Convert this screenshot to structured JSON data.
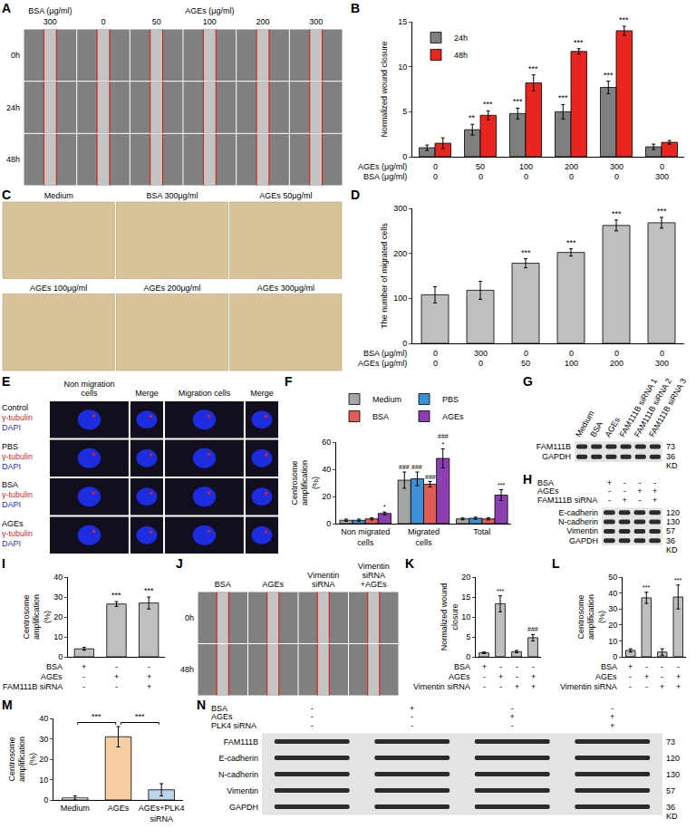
{
  "chart_data": [
    {
      "panel": "B",
      "type": "bar",
      "ylabel": "Normalized wound closure",
      "x_rows": [
        {
          "label": "AGEs (μg/ml)",
          "values": [
            0,
            50,
            100,
            200,
            300,
            0
          ]
        },
        {
          "label": "BSA (μg/ml)",
          "values": [
            0,
            0,
            0,
            0,
            0,
            300
          ]
        }
      ],
      "series": [
        {
          "name": "24h",
          "color": "#7f7f7f",
          "values": [
            1.0,
            3.0,
            4.8,
            5.0,
            7.7,
            1.1
          ],
          "errors": [
            0.3,
            0.6,
            0.6,
            0.8,
            0.7,
            0.3
          ],
          "significance": [
            null,
            "**",
            "***",
            "***",
            "***",
            null
          ]
        },
        {
          "name": "48h",
          "color": "#e8251f",
          "values": [
            1.5,
            4.6,
            8.2,
            11.7,
            14.0,
            1.6
          ],
          "errors": [
            0.6,
            0.5,
            0.9,
            0.3,
            0.5,
            0.2
          ],
          "significance": [
            null,
            "***",
            "***",
            "***",
            "***",
            null
          ]
        }
      ],
      "ylim": [
        0,
        15
      ],
      "yticks": [
        0,
        5,
        10,
        15
      ],
      "legend": "top-left",
      "grid": false
    },
    {
      "panel": "D",
      "type": "bar",
      "ylabel": "The number of migrated cells",
      "x_rows": [
        {
          "label": "BSA (μg/ml)",
          "values": [
            0,
            300,
            0,
            0,
            0,
            0
          ]
        },
        {
          "label": "AGEs (μg/ml)",
          "values": [
            0,
            0,
            50,
            100,
            200,
            300
          ]
        }
      ],
      "values": [
        108,
        118,
        178,
        202,
        262,
        268
      ],
      "errors": [
        18,
        20,
        10,
        8,
        12,
        12
      ],
      "significance": [
        null,
        null,
        "***",
        "***",
        "***",
        "***"
      ],
      "color": "#bfbfbf",
      "ylim": [
        0,
        300
      ],
      "yticks": [
        0,
        100,
        200,
        300
      ],
      "grid": false
    },
    {
      "panel": "F",
      "type": "bar",
      "ylabel": "Centrosome amplification (%)",
      "categories": [
        "Non migrated cells",
        "Migrated cells",
        "Total"
      ],
      "series": [
        {
          "name": "Medium",
          "color": "#a6a6a6",
          "values": [
            2.5,
            32,
            3.5
          ],
          "errors": [
            0.8,
            6,
            0.7
          ],
          "significance": [
            null,
            "###",
            null
          ]
        },
        {
          "name": "PBS",
          "color": "#3d8fd6",
          "values": [
            2.5,
            33,
            4
          ],
          "errors": [
            0.8,
            5,
            0.8
          ],
          "significance": [
            null,
            "###",
            null
          ]
        },
        {
          "name": "BSA",
          "color": "#e05c55",
          "values": [
            3.5,
            29,
            3.5
          ],
          "errors": [
            0.8,
            2,
            0.8
          ],
          "significance": [
            null,
            "###",
            null
          ]
        },
        {
          "name": "AGEs",
          "color": "#8b3fb0",
          "values": [
            7.5,
            48,
            21
          ],
          "errors": [
            1,
            7,
            4
          ],
          "significance": [
            "*",
            [
              "###",
              "*"
            ],
            "***"
          ]
        }
      ],
      "ylim": [
        0,
        60
      ],
      "yticks": [
        0,
        20,
        40,
        60
      ],
      "legend": "top",
      "grid": false
    },
    {
      "panel": "I",
      "type": "bar",
      "ylabel": "Centrosome amplification (%)",
      "x_rows": [
        {
          "label": "BSA",
          "values": [
            "+",
            "-",
            "-"
          ]
        },
        {
          "label": "AGEs",
          "values": [
            "-",
            "+",
            "+"
          ]
        },
        {
          "label": "FAM111B siRNA",
          "values": [
            "-",
            "-",
            "+"
          ]
        }
      ],
      "values": [
        4,
        26.5,
        27
      ],
      "errors": [
        0.7,
        1.2,
        3
      ],
      "significance": [
        null,
        "***",
        "***"
      ],
      "color": "#bfbfbf",
      "ylim": [
        0,
        40
      ],
      "yticks": [
        0,
        10,
        20,
        30,
        40
      ],
      "grid": false
    },
    {
      "panel": "K",
      "type": "bar",
      "ylabel": "Normalized wound closure",
      "x_rows": [
        {
          "label": "BSA",
          "values": [
            "+",
            "-",
            "-",
            "-"
          ]
        },
        {
          "label": "AGEs",
          "values": [
            "-",
            "+",
            "-",
            "+"
          ]
        },
        {
          "label": "Vimentin siRNA",
          "values": [
            "-",
            "-",
            "+",
            "+"
          ]
        }
      ],
      "values": [
        1,
        13.3,
        1.3,
        4.8
      ],
      "errors": [
        0.2,
        2,
        0.3,
        0.8
      ],
      "significance": [
        null,
        "***",
        null,
        "###"
      ],
      "color": "#bfbfbf",
      "ylim": [
        0,
        20
      ],
      "yticks": [
        0,
        5,
        10,
        15,
        20
      ],
      "grid": false
    },
    {
      "panel": "L",
      "type": "bar",
      "ylabel": "Centrosome amplification (%)",
      "x_rows": [
        {
          "label": "BSA",
          "values": [
            "+",
            "-",
            "-",
            "-"
          ]
        },
        {
          "label": "AGEs",
          "values": [
            "-",
            "+",
            "-",
            "+"
          ]
        },
        {
          "label": "Vimentin siRNA",
          "values": [
            "-",
            "-",
            "+",
            "+"
          ]
        }
      ],
      "values": [
        4,
        37,
        3,
        37.5
      ],
      "errors": [
        1,
        3.5,
        2,
        7.5
      ],
      "significance": [
        null,
        "***",
        null,
        "***"
      ],
      "color": "#bfbfbf",
      "ylim": [
        0,
        50
      ],
      "yticks": [
        0,
        10,
        20,
        30,
        40,
        50
      ],
      "grid": false
    },
    {
      "panel": "M",
      "type": "bar",
      "ylabel": "Centrosome amplification (%)",
      "categories": [
        "Medium",
        "AGEs",
        "AGEs+PLK4 siRNA"
      ],
      "values": [
        1,
        31,
        5
      ],
      "errors": [
        1,
        5,
        3
      ],
      "colors": [
        "#ffffff",
        "#f8cfa0",
        "#bcd4ec"
      ],
      "comparisons": [
        {
          "from": 0,
          "to": 1,
          "text": "***"
        },
        {
          "from": 1,
          "to": 2,
          "text": "***"
        }
      ],
      "ylim": [
        0,
        40
      ],
      "yticks": [
        0,
        10,
        20,
        30,
        40
      ],
      "grid": false
    }
  ],
  "image_panels": [
    {
      "panel": "A",
      "type": "scratch_assay",
      "col_groups": [
        {
          "label": "BSA (μg/ml)",
          "span": 1
        },
        {
          "label": "AGEs (μg/ml)",
          "span": 5
        }
      ],
      "columns": [
        300,
        0,
        50,
        100,
        200,
        300
      ],
      "rows": [
        "0h",
        "24h",
        "48h"
      ]
    },
    {
      "panel": "C",
      "type": "transwell",
      "labels": [
        "Medium",
        "BSA 300μg/ml",
        "AGEs 50μg/ml",
        "AGEs 100μg/ml",
        "AGEs 200μg/ml",
        "AGEs 300μg/ml"
      ]
    },
    {
      "panel": "E",
      "type": "immunofluorescence",
      "columns": [
        "Non migration cells",
        "Merge",
        "Migration cells",
        "Merge"
      ],
      "rows": [
        "Control",
        "PBS",
        "BSA",
        "AGEs"
      ],
      "stains": [
        {
          "name": "γ-tubulin",
          "color": "#e0201c"
        },
        {
          "name": "DAPI",
          "color": "#1c2ce0"
        }
      ]
    },
    {
      "panel": "G",
      "type": "western_blot",
      "lanes": [
        "Medium",
        "BSA",
        "AGEs",
        "FAM111B siRNA 1",
        "FAM111B siRNA 2",
        "FAM111B siRNA 3"
      ],
      "proteins": [
        {
          "name": "FAM111B",
          "kd": 73
        },
        {
          "name": "GAPDH",
          "kd": 36
        }
      ],
      "unit": "KD"
    },
    {
      "panel": "H",
      "type": "western_blot",
      "conditions": [
        {
          "label": "BSA",
          "values": [
            "+",
            "-",
            "-",
            "-"
          ]
        },
        {
          "label": "AGEs",
          "values": [
            "-",
            "-",
            "+",
            "+"
          ]
        },
        {
          "label": "FAM111B siRNA",
          "values": [
            "-",
            "+",
            "-",
            "+"
          ]
        }
      ],
      "proteins": [
        {
          "name": "E-cadherin",
          "kd": 120
        },
        {
          "name": "N-cadherin",
          "kd": 130
        },
        {
          "name": "Vimentin",
          "kd": 57
        },
        {
          "name": "GAPDH",
          "kd": 36
        }
      ],
      "unit": "KD"
    },
    {
      "panel": "J",
      "type": "scratch_assay",
      "columns": [
        "BSA",
        "AGEs",
        "Vimentin siRNA",
        "Vimentin siRNA +AGEs"
      ],
      "rows": [
        "0h",
        "48h"
      ]
    },
    {
      "panel": "N",
      "type": "western_blot",
      "conditions": [
        {
          "label": "BSA",
          "values": [
            "-",
            "+",
            "-",
            "-"
          ]
        },
        {
          "label": "AGEs",
          "values": [
            "-",
            "-",
            "+",
            "+"
          ]
        },
        {
          "label": "PLK4 siRNA",
          "values": [
            "-",
            "-",
            "-",
            "+"
          ]
        }
      ],
      "proteins": [
        {
          "name": "FAM111B",
          "kd": 73
        },
        {
          "name": "E-cadherin",
          "kd": 120
        },
        {
          "name": "N-cadherin",
          "kd": 130
        },
        {
          "name": "Vimentin",
          "kd": 57
        },
        {
          "name": "GAPDH",
          "kd": 36
        }
      ],
      "unit": "KD"
    }
  ]
}
